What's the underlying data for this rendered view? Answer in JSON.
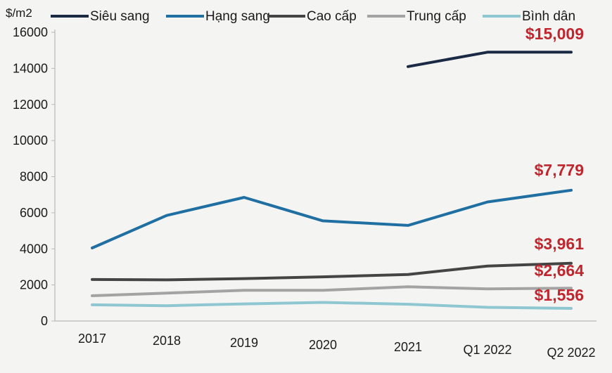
{
  "chart_data": {
    "type": "line",
    "ylabel": "$/m2",
    "ylim": [
      0,
      16000
    ],
    "yticks": [
      0,
      2000,
      4000,
      6000,
      8000,
      10000,
      12000,
      14000,
      16000
    ],
    "categories": [
      "2017",
      "2018",
      "2019",
      "2020",
      "2021",
      "Q1 2022",
      "Q2 2022"
    ],
    "legend_position": "top",
    "grid": false,
    "series": [
      {
        "name": "Siêu sang",
        "color": "#1b2a44",
        "values": [
          null,
          null,
          null,
          null,
          14100,
          14900,
          14900
        ]
      },
      {
        "name": "Hạng sang",
        "color": "#1f6fa3",
        "values": [
          4050,
          5850,
          6850,
          5550,
          5300,
          6600,
          7250
        ]
      },
      {
        "name": "Cao cấp",
        "color": "#444444",
        "values": [
          2300,
          2280,
          2350,
          2450,
          2580,
          3050,
          3200
        ]
      },
      {
        "name": "Trung cấp",
        "color": "#a3a3a3",
        "values": [
          1400,
          1550,
          1700,
          1700,
          1900,
          1780,
          1820
        ]
      },
      {
        "name": "Bình dân",
        "color": "#8ec6d1",
        "values": [
          900,
          850,
          950,
          1030,
          930,
          760,
          700
        ]
      }
    ],
    "annotations": [
      {
        "text": "$15,009",
        "value": 15009
      },
      {
        "text": "$7,779",
        "value": 7779
      },
      {
        "text": "$3,961",
        "value": 3961
      },
      {
        "text": "$2,664",
        "value": 2664
      },
      {
        "text": "$1,556",
        "value": 1556
      }
    ]
  }
}
